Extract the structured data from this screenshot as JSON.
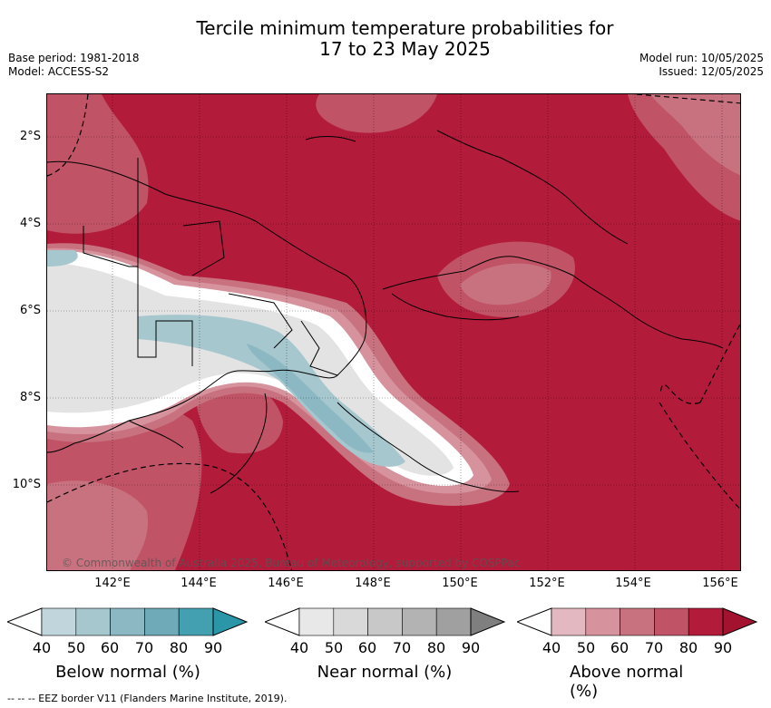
{
  "title_line1": "Tercile minimum temperature probabilities for",
  "title_line2": "17 to 23 May 2025",
  "base_period": "Base period: 1981-2018",
  "model": "Model: ACCESS-S2",
  "model_run": "Model run: 10/05/2025",
  "issued": "Issued: 12/05/2025",
  "lat_labels": [
    "2°S",
    "4°S",
    "6°S",
    "8°S",
    "10°S"
  ],
  "lon_labels": [
    "142°E",
    "144°E",
    "146°E",
    "148°E",
    "150°E",
    "152°E",
    "154°E",
    "156°E"
  ],
  "copyright": "© Commonwealth of Australia 2025, Bureau of Meteorology, supported by COSPPac",
  "legends": [
    {
      "title": "Below normal (%)",
      "ticks": [
        "40",
        "50",
        "60",
        "70",
        "80",
        "90"
      ],
      "colors": [
        "#c0d6dc",
        "#a6c7ce",
        "#8bb8c3",
        "#6eaab7",
        "#43a0b1",
        "#2a96a8"
      ]
    },
    {
      "title": "Near normal (%)",
      "ticks": [
        "40",
        "50",
        "60",
        "70",
        "80",
        "90"
      ],
      "colors": [
        "#e8e8e8",
        "#d9d9d9",
        "#c8c8c8",
        "#b3b3b3",
        "#a0a0a0",
        "#7f7f7f"
      ]
    },
    {
      "title": "Above normal (%)",
      "ticks": [
        "40",
        "50",
        "60",
        "70",
        "80",
        "90"
      ],
      "colors": [
        "#e3b8c0",
        "#d6939e",
        "#c9727f",
        "#c05366",
        "#b31b3b",
        "#a3132f"
      ]
    }
  ],
  "eez_note": "-- -- -- EEZ border V11 (Flanders Marine Institute, 2019).",
  "colors": {
    "above_max": "#b31b3b",
    "near": "#e3e3e3",
    "below": "#a6c7ce"
  }
}
